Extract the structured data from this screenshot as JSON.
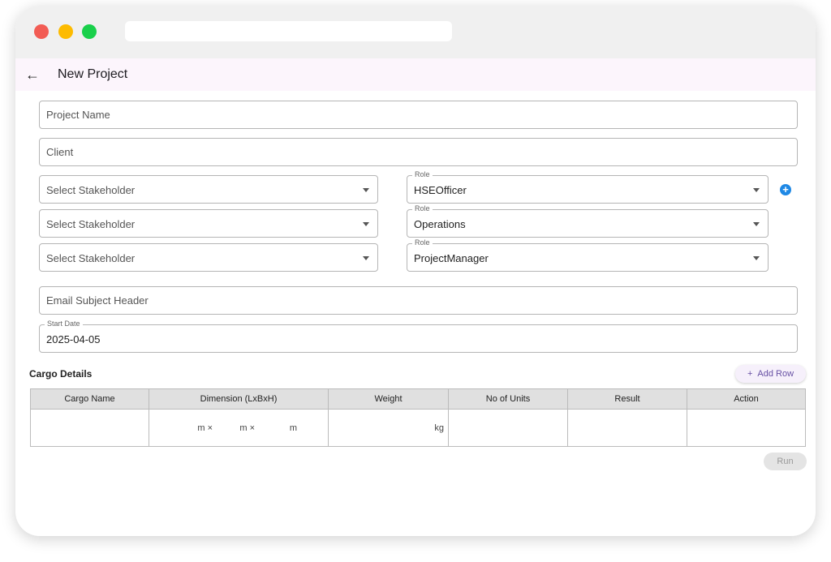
{
  "window": {
    "controls": {
      "close": "#f25c54",
      "minimize": "#fdbb00",
      "maximize": "#19d04b"
    }
  },
  "header": {
    "title": "New Project",
    "back_icon": "arrow-left"
  },
  "form": {
    "project_name": {
      "placeholder": "Project Name",
      "value": ""
    },
    "client": {
      "placeholder": "Client",
      "value": ""
    },
    "stakeholders": [
      {
        "placeholder": "Select Stakeholder",
        "role_label": "Role",
        "role": "HSEOfficer"
      },
      {
        "placeholder": "Select Stakeholder",
        "role_label": "Role",
        "role": "Operations"
      },
      {
        "placeholder": "Select Stakeholder",
        "role_label": "Role",
        "role": "ProjectManager"
      }
    ],
    "add_stakeholder_icon": "plus-circle",
    "email_subject": {
      "placeholder": "Email Subject Header",
      "value": ""
    },
    "start_date": {
      "label": "Start Date",
      "value": "2025-04-05"
    }
  },
  "cargo": {
    "title": "Cargo Details",
    "add_row": "Add Row",
    "add_row_icon": "+",
    "columns": [
      "Cargo Name",
      "Dimension (LxBxH)",
      "Weight",
      "No of Units",
      "Result",
      "Action"
    ],
    "row": {
      "dim_units": [
        "m ×",
        "m ×",
        "m"
      ],
      "weight_unit": "kg"
    },
    "run": "Run"
  },
  "colors": {
    "accent": "#6750a4",
    "plus": "#1e88e5",
    "appbar": "#fcf5fc"
  }
}
